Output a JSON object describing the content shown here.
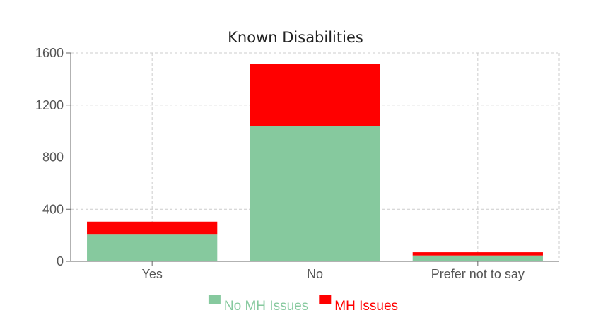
{
  "chart_data": {
    "type": "bar",
    "stacked": true,
    "title": "Known Disabilities",
    "xlabel": "",
    "ylabel": "",
    "categories": [
      "Yes",
      "No",
      "Prefer not to say"
    ],
    "series": [
      {
        "name": "No MH Issues",
        "color": "#86c99e",
        "values": [
          205,
          1040,
          45
        ]
      },
      {
        "name": "MH Issues",
        "color": "#ff0000",
        "values": [
          100,
          475,
          25
        ]
      }
    ],
    "ylim": [
      0,
      1600
    ],
    "yticks": [
      0,
      400,
      800,
      1200,
      1600
    ],
    "grid": true,
    "legend_position": "bottom"
  }
}
